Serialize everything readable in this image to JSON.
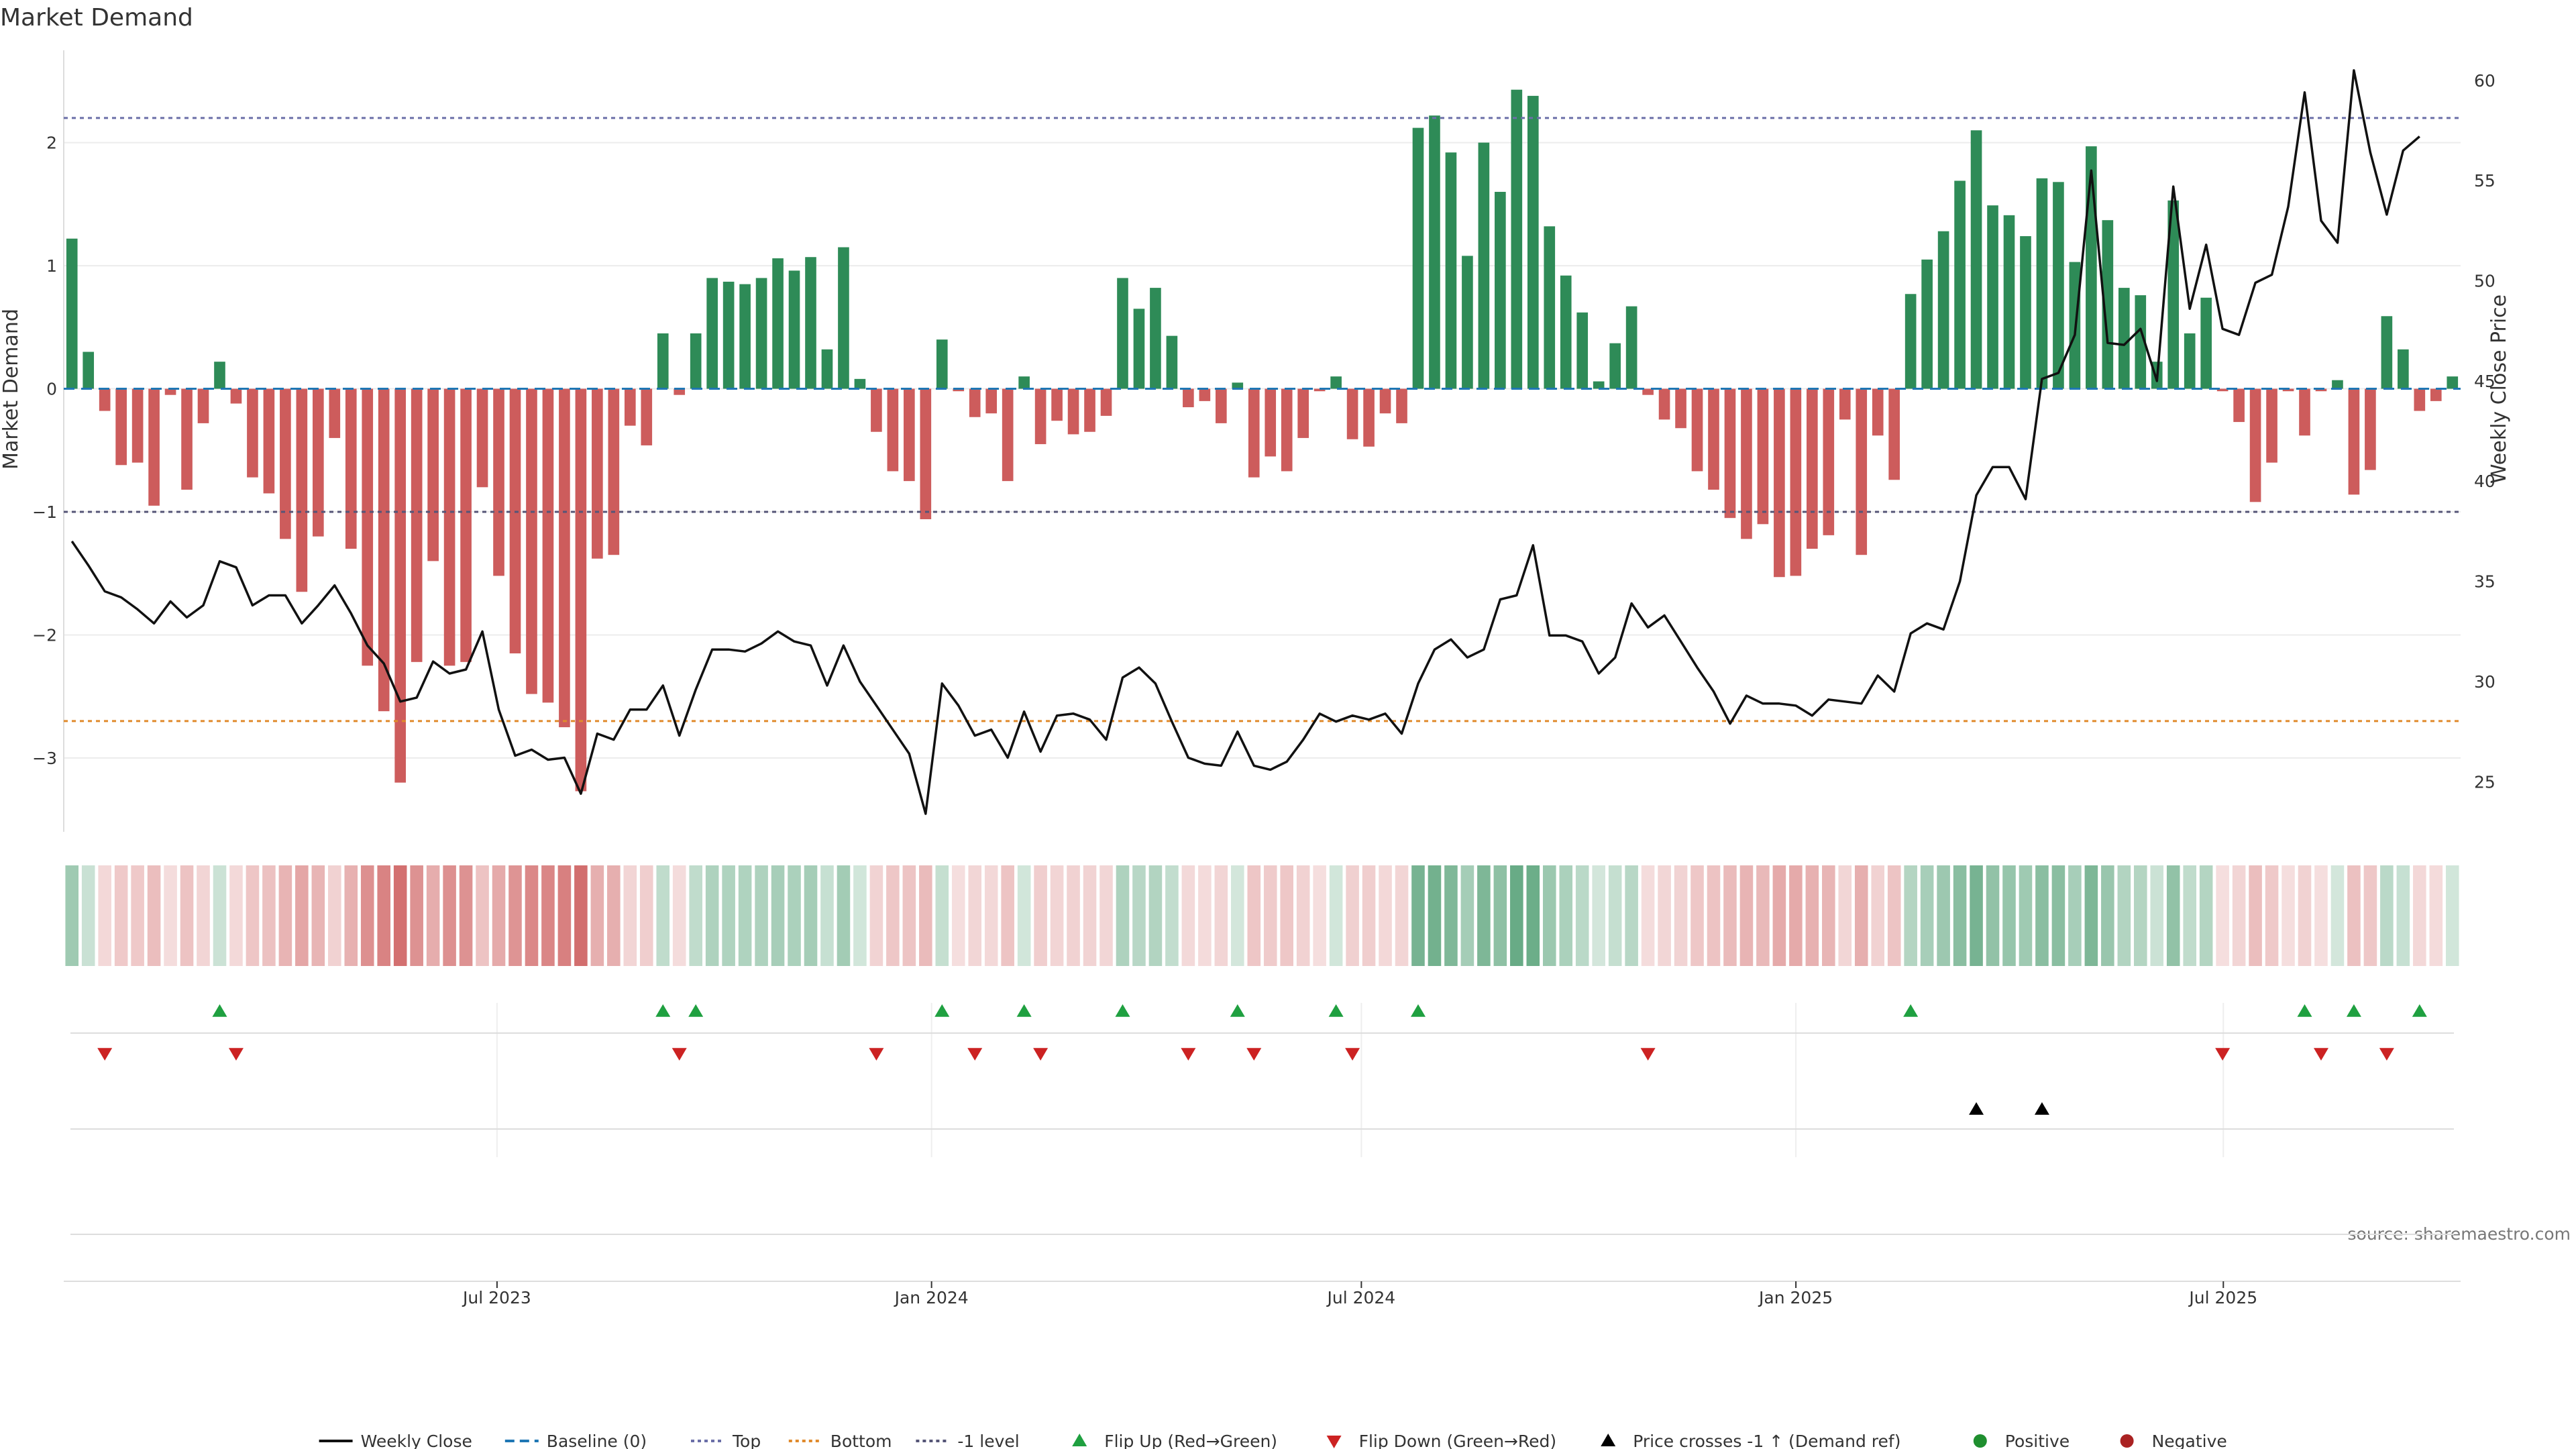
{
  "chart_data": {
    "type": "bar",
    "title": "Market Demand",
    "ylabel_left": "Market Demand",
    "ylabel_right": "Weekly Close Price",
    "source_text": "source: sharemaestro.com",
    "ylim_left": [
      -3.6,
      2.75
    ],
    "ylim_right": [
      22.5,
      61.5
    ],
    "yticks_left": [
      -3,
      -2,
      -1,
      0,
      1,
      2
    ],
    "yticks_left_labels": [
      "−3",
      "−2",
      "−1",
      "0",
      "1",
      "2"
    ],
    "yticks_right": [
      25,
      30,
      35,
      40,
      45,
      50,
      55,
      60
    ],
    "yticks_right_labels": [
      "25",
      "30",
      "35",
      "40",
      "45",
      "50",
      "55",
      "60"
    ],
    "x_start": "2023-01-02",
    "x_end": "2025-10-06",
    "xticks": [
      {
        "date": "2023-07-01",
        "label": "Jul 2023"
      },
      {
        "date": "2024-01-01",
        "label": "Jan 2024"
      },
      {
        "date": "2024-07-01",
        "label": "Jul 2024"
      },
      {
        "date": "2025-01-01",
        "label": "Jan 2025"
      },
      {
        "date": "2025-07-01",
        "label": "Jul 2025"
      }
    ],
    "ref_lines": {
      "top": 2.2,
      "bottom": -2.7,
      "minus_one": -1,
      "baseline": 0
    },
    "colors": {
      "positive": "#2e8b57",
      "negative": "#cd5c5c",
      "close": "#111111",
      "top": "#6b6fa8",
      "bottom": "#e08a2c",
      "minus_one": "#555577",
      "baseline": "#1f77b4",
      "flip_up": "#1fa040",
      "flip_down": "#cc2222",
      "cross": "#000000",
      "pos_dot": "#1f8f2f",
      "neg_dot": "#aa2222"
    },
    "demand": [
      1.22,
      0.3,
      -0.18,
      -0.62,
      -0.6,
      -0.95,
      -0.05,
      -0.82,
      -0.28,
      0.22,
      -0.12,
      -0.72,
      -0.85,
      -1.22,
      -1.65,
      -1.2,
      -0.4,
      -1.3,
      -2.25,
      -2.62,
      -3.2,
      -2.22,
      -1.4,
      -2.25,
      -2.22,
      -0.8,
      -1.52,
      -2.15,
      -2.48,
      -2.55,
      -2.75,
      -3.27,
      -1.38,
      -1.35,
      -0.3,
      -0.46,
      0.45,
      -0.05,
      0.45,
      0.9,
      0.87,
      0.85,
      0.9,
      1.06,
      0.96,
      1.07,
      0.32,
      1.15,
      0.08,
      -0.35,
      -0.67,
      -0.75,
      -1.06,
      0.4,
      -0.02,
      -0.23,
      -0.2,
      -0.75,
      0.1,
      -0.45,
      -0.26,
      -0.37,
      -0.35,
      -0.22,
      0.9,
      0.65,
      0.82,
      0.43,
      -0.15,
      -0.1,
      -0.28,
      0.05,
      -0.72,
      -0.55,
      -0.67,
      -0.4,
      -0.02,
      0.1,
      -0.41,
      -0.47,
      -0.2,
      -0.28,
      2.12,
      2.22,
      1.92,
      1.08,
      2.0,
      1.6,
      2.43,
      2.38,
      1.32,
      0.92,
      0.62,
      0.06,
      0.37,
      0.67,
      -0.05,
      -0.25,
      -0.32,
      -0.67,
      -0.82,
      -1.05,
      -1.22,
      -1.1,
      -1.53,
      -1.52,
      -1.3,
      -1.19,
      -0.25,
      -1.35,
      -0.38,
      -0.74,
      0.77,
      1.05,
      1.28,
      1.69,
      2.1,
      1.49,
      1.41,
      1.24,
      1.71,
      1.68,
      1.03,
      1.97,
      1.37,
      0.82,
      0.76,
      0.22,
      1.53,
      0.45,
      0.74,
      -0.02,
      -0.27,
      -0.92,
      -0.6,
      -0.02,
      -0.38,
      -0.02,
      0.07,
      -0.86,
      -0.66,
      0.59,
      0.32,
      -0.18,
      -0.1,
      0.1
    ],
    "close": [
      37.0,
      35.8,
      34.5,
      34.2,
      33.6,
      32.9,
      34.0,
      33.2,
      33.8,
      36.0,
      35.7,
      33.8,
      34.3,
      34.3,
      32.9,
      33.8,
      34.8,
      33.4,
      31.8,
      30.9,
      29.0,
      29.2,
      31.0,
      30.4,
      30.6,
      32.5,
      28.6,
      26.3,
      26.6,
      26.1,
      26.2,
      24.4,
      27.4,
      27.1,
      28.6,
      28.6,
      29.8,
      27.3,
      29.6,
      31.6,
      31.6,
      31.5,
      31.9,
      32.5,
      32.0,
      31.8,
      29.8,
      31.8,
      30.0,
      28.8,
      27.6,
      26.4,
      23.4,
      29.9,
      28.8,
      27.3,
      27.6,
      26.2,
      28.5,
      26.5,
      28.3,
      28.4,
      28.1,
      27.1,
      30.2,
      30.7,
      29.9,
      28.0,
      26.2,
      25.9,
      25.8,
      27.5,
      25.8,
      25.6,
      26.0,
      27.1,
      28.4,
      28.0,
      28.3,
      28.1,
      28.4,
      27.4,
      29.9,
      31.6,
      32.1,
      31.2,
      31.6,
      34.1,
      34.3,
      36.8,
      32.3,
      32.3,
      32.0,
      30.4,
      31.2,
      33.9,
      32.7,
      33.3,
      32.0,
      30.7,
      29.5,
      27.9,
      29.3,
      28.9,
      28.9,
      28.8,
      28.3,
      29.1,
      29.0,
      28.9,
      30.3,
      29.5,
      32.4,
      32.9,
      32.6,
      35.0,
      39.3,
      40.7,
      40.7,
      39.1,
      45.1,
      45.4,
      47.3,
      55.5,
      46.9,
      46.8,
      47.6,
      45.0,
      54.7,
      48.6,
      51.8,
      47.6,
      47.3,
      49.9,
      50.3,
      53.7,
      59.4,
      53.0,
      51.9,
      60.5,
      56.4,
      53.3,
      56.5,
      57.2
    ],
    "flip_up_weeks": [
      9,
      36,
      38,
      53,
      58,
      64,
      71,
      77,
      82,
      112,
      136,
      139,
      143
    ],
    "flip_down_weeks": [
      2,
      10,
      37,
      49,
      55,
      59,
      68,
      72,
      78,
      96,
      131,
      137,
      141
    ],
    "cross_weeks": [
      116,
      120
    ],
    "legend": [
      {
        "key": "close",
        "label": "Weekly Close"
      },
      {
        "key": "baseline",
        "label": "Baseline (0)"
      },
      {
        "key": "top",
        "label": "Top"
      },
      {
        "key": "bottom",
        "label": "Bottom"
      },
      {
        "key": "minus_one",
        "label": "-1 level"
      },
      {
        "key": "flip_up",
        "label": "Flip Up (Red→Green)"
      },
      {
        "key": "flip_down",
        "label": "Flip Down (Green→Red)"
      },
      {
        "key": "cross",
        "label": "Price crosses -1 ↑ (Demand ref)"
      },
      {
        "key": "pos_dot",
        "label": "Positive"
      },
      {
        "key": "neg_dot",
        "label": "Negative"
      }
    ]
  }
}
